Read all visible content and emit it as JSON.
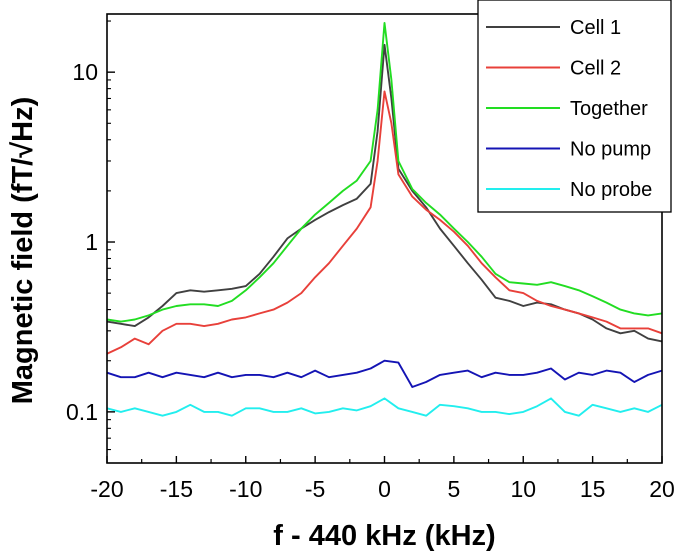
{
  "chart_data": {
    "type": "line",
    "xlabel": "f - 440 kHz (kHz)",
    "ylabel": "Magnetic field (fT/√Hz)",
    "xlim": [
      -20,
      20
    ],
    "ylim": [
      0.05,
      22
    ],
    "yscale": "log",
    "grid": false,
    "legend_position": "top-right",
    "xticks": [
      {
        "value": -20,
        "label": "-20"
      },
      {
        "value": -15,
        "label": "-15"
      },
      {
        "value": -10,
        "label": "-10"
      },
      {
        "value": -5,
        "label": "-5"
      },
      {
        "value": 0,
        "label": "0"
      },
      {
        "value": 5,
        "label": "5"
      },
      {
        "value": 10,
        "label": "10"
      },
      {
        "value": 15,
        "label": "15"
      },
      {
        "value": 20,
        "label": "20"
      }
    ],
    "yticks": [
      {
        "value": 0.1,
        "label": "0.1"
      },
      {
        "value": 1,
        "label": "1"
      },
      {
        "value": 10,
        "label": "10"
      }
    ],
    "series": [
      {
        "name": "Cell 1",
        "color": "#404040",
        "x": [
          -20,
          -19,
          -18,
          -17,
          -16,
          -15,
          -14,
          -13,
          -12,
          -11,
          -10,
          -9,
          -8,
          -7,
          -6,
          -5,
          -4,
          -3,
          -2,
          -1,
          -0.5,
          0,
          0.5,
          1,
          2,
          3,
          4,
          5,
          6,
          7,
          8,
          9,
          10,
          11,
          12,
          13,
          14,
          15,
          16,
          17,
          18,
          19,
          20
        ],
        "y": [
          0.34,
          0.33,
          0.32,
          0.36,
          0.42,
          0.5,
          0.52,
          0.51,
          0.52,
          0.53,
          0.55,
          0.65,
          0.82,
          1.05,
          1.2,
          1.35,
          1.5,
          1.65,
          1.8,
          2.2,
          4.5,
          14.5,
          7.0,
          2.7,
          2.0,
          1.6,
          1.2,
          0.95,
          0.75,
          0.6,
          0.47,
          0.45,
          0.42,
          0.44,
          0.43,
          0.4,
          0.38,
          0.35,
          0.31,
          0.29,
          0.3,
          0.27,
          0.26
        ]
      },
      {
        "name": "Cell 2",
        "color": "#e8403a",
        "x": [
          -20,
          -19,
          -18,
          -17,
          -16,
          -15,
          -14,
          -13,
          -12,
          -11,
          -10,
          -9,
          -8,
          -7,
          -6,
          -5,
          -4,
          -3,
          -2,
          -1,
          -0.5,
          0,
          0.5,
          1,
          2,
          3,
          4,
          5,
          6,
          7,
          8,
          9,
          10,
          11,
          12,
          13,
          14,
          15,
          16,
          17,
          18,
          19,
          20
        ],
        "y": [
          0.22,
          0.24,
          0.27,
          0.25,
          0.3,
          0.33,
          0.33,
          0.32,
          0.33,
          0.35,
          0.36,
          0.38,
          0.4,
          0.44,
          0.5,
          0.62,
          0.75,
          0.95,
          1.2,
          1.6,
          3.0,
          7.7,
          5.0,
          2.5,
          1.85,
          1.55,
          1.35,
          1.15,
          0.95,
          0.75,
          0.62,
          0.52,
          0.5,
          0.45,
          0.42,
          0.4,
          0.38,
          0.36,
          0.34,
          0.31,
          0.31,
          0.31,
          0.29
        ]
      },
      {
        "name": "Together",
        "color": "#22dd22",
        "x": [
          -20,
          -19,
          -18,
          -17,
          -16,
          -15,
          -14,
          -13,
          -12,
          -11,
          -10,
          -9,
          -8,
          -7,
          -6,
          -5,
          -4,
          -3,
          -2,
          -1,
          -0.5,
          0,
          0.5,
          1,
          2,
          3,
          4,
          5,
          6,
          7,
          8,
          9,
          10,
          11,
          12,
          13,
          14,
          15,
          16,
          17,
          18,
          19,
          20
        ],
        "y": [
          0.35,
          0.34,
          0.35,
          0.37,
          0.4,
          0.42,
          0.43,
          0.43,
          0.42,
          0.45,
          0.52,
          0.62,
          0.75,
          0.95,
          1.2,
          1.45,
          1.7,
          2.0,
          2.3,
          3.0,
          6.0,
          19.5,
          9.0,
          3.0,
          2.05,
          1.7,
          1.45,
          1.2,
          1.0,
          0.82,
          0.65,
          0.58,
          0.57,
          0.56,
          0.58,
          0.55,
          0.52,
          0.48,
          0.44,
          0.4,
          0.38,
          0.37,
          0.38
        ]
      },
      {
        "name": "No pump",
        "color": "#1414b4",
        "x": [
          -20,
          -19,
          -18,
          -17,
          -16,
          -15,
          -14,
          -13,
          -12,
          -11,
          -10,
          -9,
          -8,
          -7,
          -6,
          -5,
          -4,
          -3,
          -2,
          -1,
          0,
          1,
          2,
          3,
          4,
          5,
          6,
          7,
          8,
          9,
          10,
          11,
          12,
          13,
          14,
          15,
          16,
          17,
          18,
          19,
          20
        ],
        "y": [
          0.17,
          0.16,
          0.16,
          0.17,
          0.16,
          0.17,
          0.165,
          0.16,
          0.17,
          0.16,
          0.165,
          0.165,
          0.16,
          0.17,
          0.16,
          0.175,
          0.16,
          0.165,
          0.17,
          0.18,
          0.2,
          0.195,
          0.14,
          0.15,
          0.165,
          0.17,
          0.175,
          0.16,
          0.17,
          0.165,
          0.165,
          0.17,
          0.18,
          0.155,
          0.17,
          0.165,
          0.175,
          0.17,
          0.15,
          0.165,
          0.175
        ]
      },
      {
        "name": "No probe",
        "color": "#22eeee",
        "x": [
          -20,
          -19,
          -18,
          -17,
          -16,
          -15,
          -14,
          -13,
          -12,
          -11,
          -10,
          -9,
          -8,
          -7,
          -6,
          -5,
          -4,
          -3,
          -2,
          -1,
          0,
          1,
          2,
          3,
          4,
          5,
          6,
          7,
          8,
          9,
          10,
          11,
          12,
          13,
          14,
          15,
          16,
          17,
          18,
          19,
          20
        ],
        "y": [
          0.105,
          0.1,
          0.105,
          0.1,
          0.095,
          0.1,
          0.11,
          0.1,
          0.1,
          0.095,
          0.105,
          0.105,
          0.1,
          0.1,
          0.105,
          0.098,
          0.1,
          0.105,
          0.102,
          0.108,
          0.12,
          0.105,
          0.1,
          0.095,
          0.11,
          0.108,
          0.105,
          0.1,
          0.1,
          0.097,
          0.1,
          0.108,
          0.12,
          0.1,
          0.095,
          0.11,
          0.105,
          0.1,
          0.105,
          0.1,
          0.11
        ]
      }
    ]
  }
}
